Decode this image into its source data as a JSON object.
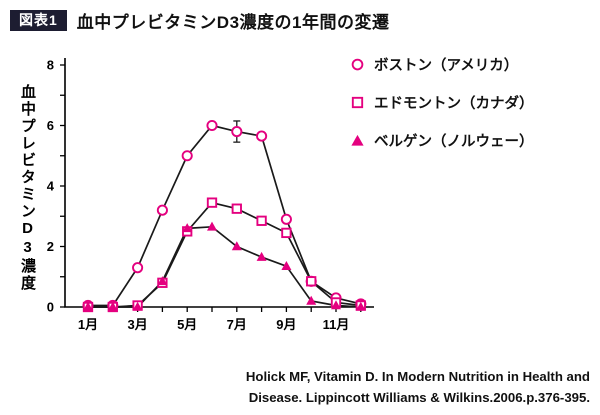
{
  "header": {
    "badge": "図表1",
    "title": "血中プレビタミンD3濃度の1年間の変遷"
  },
  "chart_data": {
    "type": "line",
    "title": "血中プレビタミンD3濃度の1年間の変遷",
    "xlabel": "",
    "ylabel": "血中プレビタミンD3濃度",
    "ylim": [
      0,
      8
    ],
    "ytick_step_labeled": 2,
    "ytick_step_minor": 1,
    "xtick_labeled_every": 2,
    "grid": false,
    "legend_position": "top-right",
    "categories": [
      "1月",
      "2月",
      "3月",
      "4月",
      "5月",
      "6月",
      "7月",
      "8月",
      "9月",
      "10月",
      "11月",
      "12月"
    ],
    "series": [
      {
        "name": "ボストン（アメリカ）",
        "marker": "circle-open",
        "values": [
          0.05,
          0.05,
          1.3,
          3.2,
          5.0,
          6.0,
          5.8,
          5.65,
          2.9,
          0.85,
          0.3,
          0.1
        ]
      },
      {
        "name": "エドモントン（カナダ）",
        "marker": "square-open",
        "values": [
          0,
          0,
          0.05,
          0.8,
          2.5,
          3.45,
          3.25,
          2.85,
          2.45,
          0.85,
          0.15,
          0.05
        ]
      },
      {
        "name": "ベルゲン（ノルウェー）",
        "marker": "triangle-filled",
        "values": [
          0,
          0,
          0,
          0.85,
          2.6,
          2.65,
          2.0,
          1.65,
          1.35,
          0.2,
          0.05,
          0
        ]
      }
    ],
    "error_bars": [
      {
        "series_index": 0,
        "month_index": 6,
        "delta": 0.35
      }
    ],
    "colors": {
      "accent": "#e4007f",
      "line": "#1a1a1a",
      "axis": "#000000"
    }
  },
  "citation": {
    "line1": "Holick MF, Vitamin D. In Modern Nutrition in Health and",
    "line2": "Disease. Lippincott Williams & Wilkins.2006.p.376-395."
  }
}
